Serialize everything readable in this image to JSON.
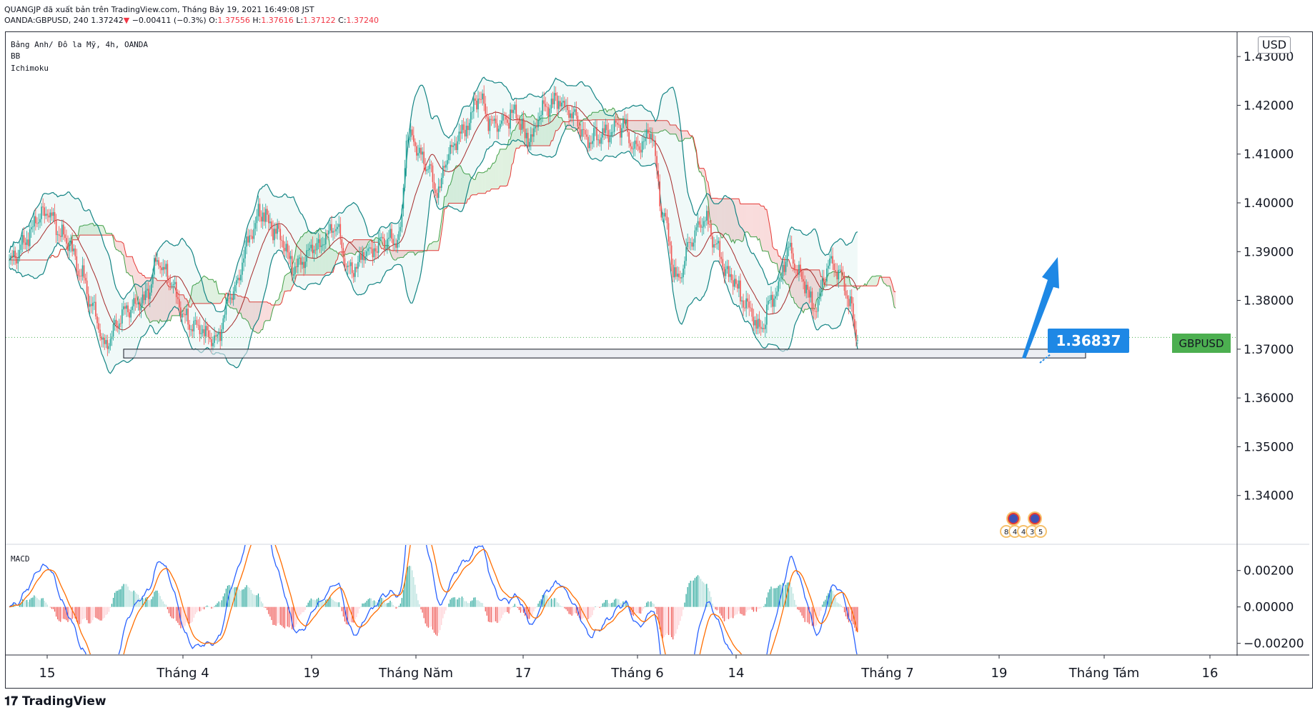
{
  "header": {
    "line1": "QUANGJP đã xuất bản trên TradingView.com, Tháng Bảy 19, 2021 16:49:08 JST",
    "symbol": "OANDA:GBPUSD, 240",
    "last": "1.37242",
    "change": "−0.00411 (−0.3%)",
    "o_label": "O:",
    "o": "1.37556",
    "h_label": "H:",
    "h": "1.37616",
    "l_label": "L:",
    "l": "1.37122",
    "c_label": "C:",
    "c": "1.37240"
  },
  "legend": {
    "title": "Bảng Anh/ Đô la Mỹ, 4h, OANDA",
    "ind1": "BB",
    "ind2": "Ichimoku",
    "macd": "MACD"
  },
  "currency": "USD",
  "symbol_tag": "GBPUSD",
  "callout": "1.36837",
  "footer": "TradingView",
  "colors": {
    "up": "#26a69a",
    "down": "#ef5350",
    "bb": "#138484",
    "basis": "#a52a2a",
    "kumo_green": "#a5d6a7",
    "kumo_red": "#ef9a9a",
    "macd": "#2962ff",
    "signal": "#ff6d00",
    "arrow": "#1e88e5",
    "tag": "#4caf50"
  },
  "events_labels": [
    "8",
    "4",
    "4",
    "3",
    "5"
  ],
  "chart_data": {
    "type": "candlestick",
    "price_axis": {
      "min": 1.33,
      "max": 1.435,
      "ticks": [
        "1.43000",
        "1.42000",
        "1.41000",
        "1.40000",
        "1.39000",
        "1.38000",
        "1.37000",
        "1.36000",
        "1.35000",
        "1.34000"
      ]
    },
    "macd_axis": {
      "min": -0.0026,
      "max": 0.0034,
      "ticks": [
        "0.00200",
        "0.00000",
        "−0.00200"
      ]
    },
    "x_labels": [
      "15",
      "Tháng 4",
      "19",
      "Tháng Năm",
      "17",
      "Tháng 6",
      "14",
      "Tháng 7",
      "19",
      "Tháng Tám",
      "16"
    ],
    "anchors": [
      [
        0,
        1.388
      ],
      [
        25,
        1.398
      ],
      [
        40,
        1.392
      ],
      [
        48,
        1.386
      ],
      [
        58,
        1.378
      ],
      [
        65,
        1.371
      ],
      [
        80,
        1.378
      ],
      [
        92,
        1.38
      ],
      [
        102,
        1.388
      ],
      [
        110,
        1.384
      ],
      [
        120,
        1.376
      ],
      [
        130,
        1.374
      ],
      [
        140,
        1.372
      ],
      [
        155,
        1.383
      ],
      [
        162,
        1.392
      ],
      [
        172,
        1.398
      ],
      [
        182,
        1.394
      ],
      [
        195,
        1.387
      ],
      [
        210,
        1.391
      ],
      [
        222,
        1.395
      ],
      [
        232,
        1.386
      ],
      [
        246,
        1.39
      ],
      [
        256,
        1.392
      ],
      [
        266,
        1.393
      ],
      [
        272,
        1.414
      ],
      [
        285,
        1.408
      ],
      [
        292,
        1.402
      ],
      [
        300,
        1.41
      ],
      [
        310,
        1.415
      ],
      [
        320,
        1.421
      ],
      [
        330,
        1.416
      ],
      [
        345,
        1.418
      ],
      [
        355,
        1.413
      ],
      [
        365,
        1.42
      ],
      [
        375,
        1.421
      ],
      [
        385,
        1.418
      ],
      [
        395,
        1.413
      ],
      [
        405,
        1.414
      ],
      [
        418,
        1.416
      ],
      [
        428,
        1.411
      ],
      [
        438,
        1.414
      ],
      [
        446,
        1.398
      ],
      [
        456,
        1.384
      ],
      [
        465,
        1.392
      ],
      [
        475,
        1.397
      ],
      [
        482,
        1.391
      ],
      [
        492,
        1.385
      ],
      [
        502,
        1.38
      ],
      [
        512,
        1.374
      ],
      [
        522,
        1.381
      ],
      [
        532,
        1.39
      ],
      [
        540,
        1.385
      ],
      [
        550,
        1.378
      ],
      [
        560,
        1.388
      ],
      [
        568,
        1.385
      ],
      [
        575,
        1.378
      ],
      [
        579,
        1.372
      ]
    ],
    "support_zone": {
      "from": 1.3682,
      "to": 1.37
    },
    "callout_price": 1.36837,
    "current_price": 1.37242,
    "arrow": {
      "from_price": 1.3682,
      "to_price": 1.3845
    }
  }
}
